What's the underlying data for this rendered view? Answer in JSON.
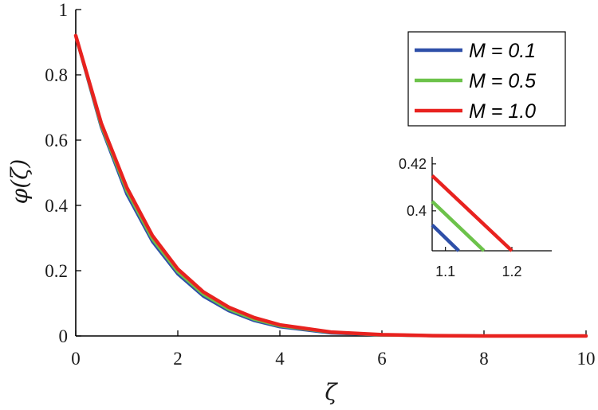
{
  "chart_data": {
    "type": "line",
    "xlabel": "ζ",
    "ylabel": "φ(ζ)",
    "xlim": [
      0,
      10
    ],
    "ylim": [
      0,
      1
    ],
    "xticks": [
      "0",
      "2",
      "4",
      "6",
      "8",
      "10"
    ],
    "yticks": [
      "0",
      "0.2",
      "0.4",
      "0.6",
      "0.8",
      "1"
    ],
    "grid": false,
    "legend_position": "top-right",
    "colors": {
      "M01": "#2e4fa8",
      "M05": "#6cc24a",
      "M10": "#e8221f"
    },
    "series": [
      {
        "name": "M = 0.1",
        "color": "#2e4fa8",
        "x": [
          0,
          0.5,
          1,
          1.5,
          2,
          2.5,
          3,
          3.5,
          4,
          5,
          6,
          7,
          8,
          9,
          10
        ],
        "y": [
          0.92,
          0.64,
          0.435,
          0.29,
          0.19,
          0.122,
          0.077,
          0.047,
          0.028,
          0.009,
          0.003,
          0.001,
          0,
          0,
          0
        ]
      },
      {
        "name": "M = 0.5",
        "color": "#6cc24a",
        "x": [
          0,
          0.5,
          1,
          1.5,
          2,
          2.5,
          3,
          3.5,
          4,
          5,
          6,
          7,
          8,
          9,
          10
        ],
        "y": [
          0.92,
          0.645,
          0.445,
          0.298,
          0.197,
          0.128,
          0.082,
          0.051,
          0.031,
          0.011,
          0.003,
          0.001,
          0,
          0,
          0
        ]
      },
      {
        "name": "M = 1.0",
        "color": "#e8221f",
        "x": [
          0,
          0.5,
          1,
          1.5,
          2,
          2.5,
          3,
          3.5,
          4,
          5,
          6,
          7,
          8,
          9,
          10
        ],
        "y": [
          0.92,
          0.652,
          0.455,
          0.308,
          0.205,
          0.135,
          0.088,
          0.056,
          0.034,
          0.012,
          0.004,
          0.001,
          0,
          0,
          0
        ]
      }
    ],
    "inset": {
      "xlim": [
        1.08,
        1.26
      ],
      "ylim": [
        0.383,
        0.423
      ],
      "xticks": [
        "1.1",
        "1.2"
      ],
      "yticks": [
        "0.4",
        "0.42"
      ],
      "series": [
        {
          "name": "M = 0.1",
          "color": "#2e4fa8",
          "x": [
            1.08,
            1.12
          ],
          "y": [
            0.394,
            0.383
          ]
        },
        {
          "name": "M = 0.5",
          "color": "#6cc24a",
          "x": [
            1.08,
            1.158
          ],
          "y": [
            0.404,
            0.383
          ]
        },
        {
          "name": "M = 1.0",
          "color": "#e8221f",
          "x": [
            1.08,
            1.2
          ],
          "y": [
            0.415,
            0.383
          ]
        }
      ]
    }
  }
}
